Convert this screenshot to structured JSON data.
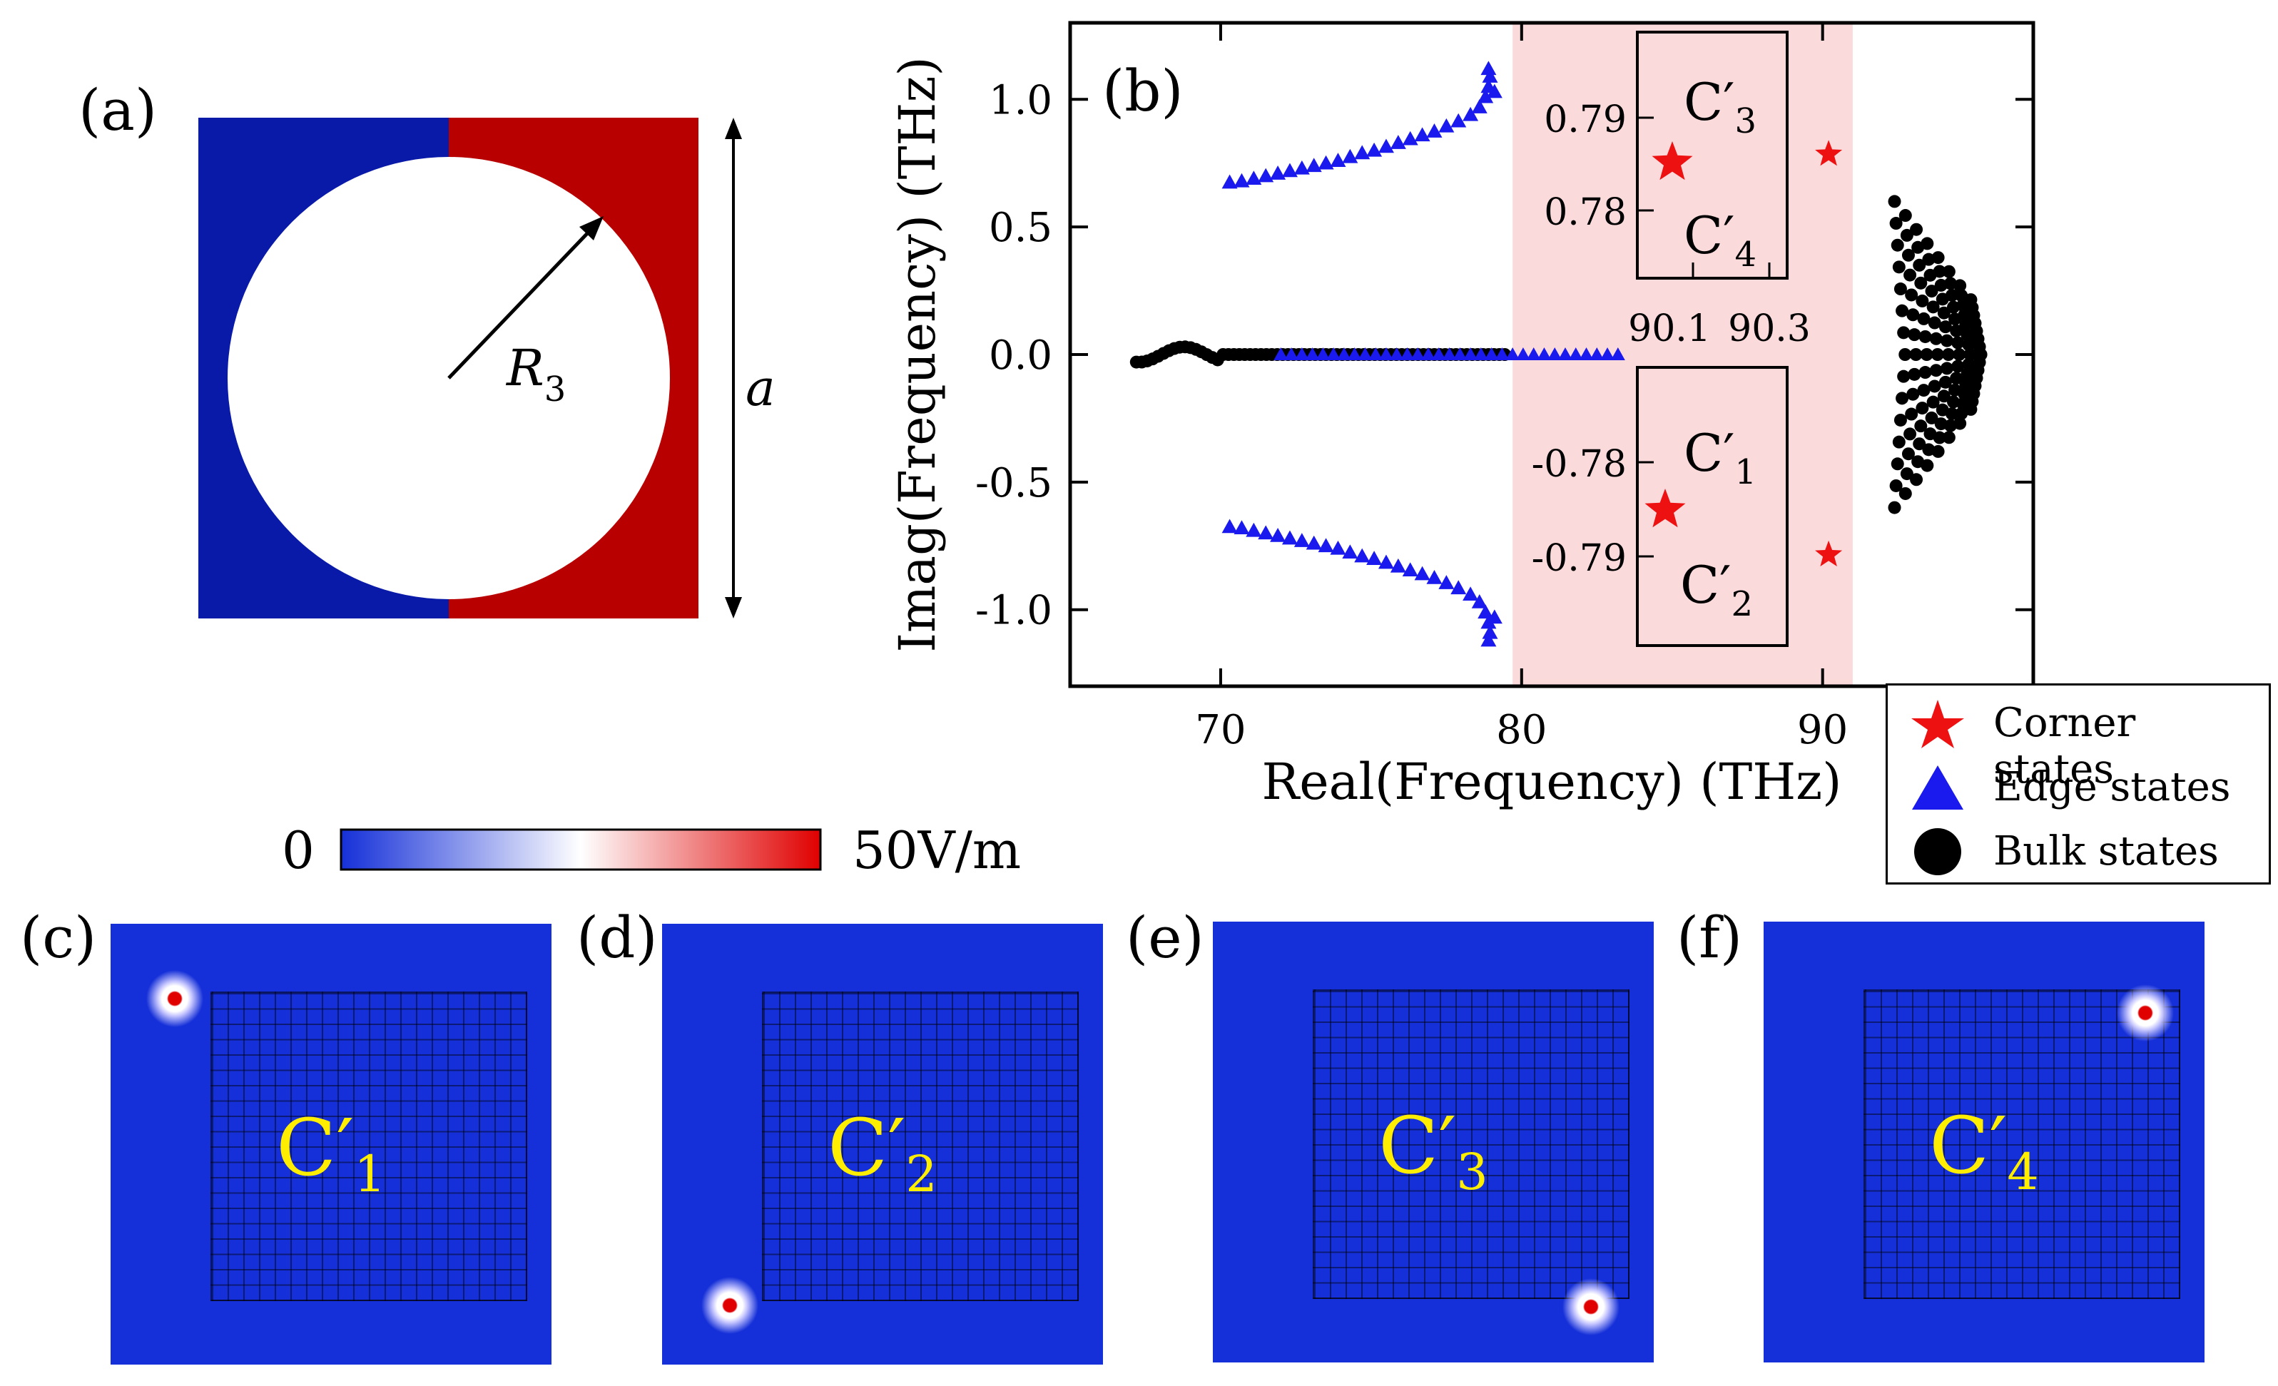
{
  "panels": {
    "a": "(a)",
    "b": "(b)",
    "c": "(c)",
    "d": "(d)",
    "e": "(e)",
    "f": "(f)"
  },
  "panel_a": {
    "radius_label": "R",
    "radius_subscript": "3",
    "side_label": "a",
    "colors": {
      "left": "#0a1aa8",
      "right": "#b80000"
    }
  },
  "chart_data": {
    "type": "scatter",
    "xlabel": "Real(Frequency) (THz)",
    "ylabel": "Imag(Frequency) (THz)",
    "xlim": [
      65,
      97
    ],
    "ylim": [
      -1.3,
      1.3
    ],
    "xticks": [
      70,
      80,
      90
    ],
    "yticks": [
      1.0,
      0.5,
      0.0,
      -0.5,
      -1.0
    ],
    "ytick_labels": [
      "1.0",
      "0.5",
      "0.0",
      "-0.5",
      "-1.0"
    ],
    "shaded_region": {
      "x": [
        79.7,
        91.0
      ],
      "color": "#fadadb"
    },
    "series": [
      {
        "name": "Corner states",
        "marker": "star",
        "color": "#ee1111",
        "points": [
          [
            90.2,
            0.785
          ],
          [
            90.2,
            -0.785
          ]
        ]
      },
      {
        "name": "Edge states",
        "marker": "triangle",
        "color": "#1a1aee",
        "upper": [
          [
            70.3,
            0.675
          ],
          [
            70.7,
            0.68
          ],
          [
            71.1,
            0.69
          ],
          [
            71.5,
            0.7
          ],
          [
            71.9,
            0.71
          ],
          [
            72.3,
            0.72
          ],
          [
            72.7,
            0.73
          ],
          [
            73.1,
            0.74
          ],
          [
            73.5,
            0.75
          ],
          [
            73.9,
            0.76
          ],
          [
            74.3,
            0.775
          ],
          [
            74.7,
            0.79
          ],
          [
            75.1,
            0.8
          ],
          [
            75.5,
            0.815
          ],
          [
            75.9,
            0.83
          ],
          [
            76.3,
            0.845
          ],
          [
            76.7,
            0.86
          ],
          [
            77.1,
            0.875
          ],
          [
            77.5,
            0.895
          ],
          [
            77.9,
            0.915
          ],
          [
            78.3,
            0.94
          ],
          [
            78.6,
            0.97
          ],
          [
            78.8,
            1.01
          ],
          [
            78.9,
            1.05
          ],
          [
            78.95,
            1.09
          ],
          [
            78.9,
            1.12
          ],
          [
            79.1,
            1.03
          ]
        ],
        "zero_range": [
          72.0,
          83.5
        ]
      },
      {
        "name": "Bulk states",
        "marker": "circle",
        "color": "#000000",
        "zero_range": [
          67.2,
          79.5
        ],
        "cloud_center": [
          94.0,
          0.0
        ],
        "cloud_x_range": [
          91.7,
          96.3
        ],
        "cloud_y_range": [
          -0.55,
          0.6
        ]
      }
    ],
    "insets": [
      {
        "id": "upper",
        "xticks": [
          "90.1",
          "90.3"
        ],
        "yticks": [
          "0.79",
          "0.78"
        ],
        "labels": [
          {
            "text": "C′",
            "sub": "3"
          },
          {
            "text": "C′",
            "sub": "4"
          }
        ]
      },
      {
        "id": "lower",
        "yticks": [
          "-0.78",
          "-0.79"
        ],
        "labels": [
          {
            "text": "C′",
            "sub": "1"
          },
          {
            "text": "C′",
            "sub": "2"
          }
        ]
      }
    ]
  },
  "legend": {
    "items": [
      {
        "label": "Corner states",
        "marker": "star",
        "color": "#ee1111"
      },
      {
        "label": "Edge states",
        "marker": "triangle",
        "color": "#1a1aee"
      },
      {
        "label": "Bulk states",
        "marker": "circle",
        "color": "#000000"
      }
    ]
  },
  "colorbar": {
    "min_label": "0",
    "max_label": "50V/m",
    "colors": [
      "#1530d8",
      "#ffffff",
      "#e00000"
    ]
  },
  "maps": [
    {
      "label": "C′",
      "sub": "1",
      "hotspot": "top-left"
    },
    {
      "label": "C′",
      "sub": "2",
      "hotspot": "bottom-left"
    },
    {
      "label": "C′",
      "sub": "3",
      "hotspot": "bottom-right"
    },
    {
      "label": "C′",
      "sub": "4",
      "hotspot": "top-right"
    }
  ]
}
